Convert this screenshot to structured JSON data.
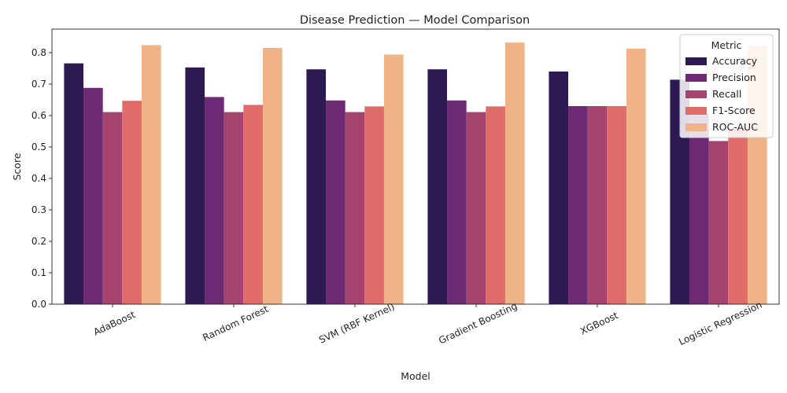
{
  "chart_data": {
    "type": "bar",
    "title": "Disease Prediction — Model Comparison",
    "xlabel": "Model",
    "ylabel": "Score",
    "ylim": [
      0,
      0.875
    ],
    "yticks": [
      0.0,
      0.1,
      0.2,
      0.3,
      0.4,
      0.5,
      0.6,
      0.7,
      0.8
    ],
    "grid": false,
    "legend": {
      "title": "Metric",
      "placement": "top-right"
    },
    "categories": [
      "AdaBoost",
      "Random Forest",
      "SVM (RBF Kernel)",
      "Gradient Boosting",
      "XGBoost",
      "Logistic Regression"
    ],
    "series": [
      {
        "name": "Accuracy",
        "color": "#2d1a52",
        "values": [
          0.766,
          0.753,
          0.747,
          0.747,
          0.74,
          0.714
        ]
      },
      {
        "name": "Precision",
        "color": "#6e2b75",
        "values": [
          0.688,
          0.659,
          0.648,
          0.648,
          0.63,
          0.606
        ]
      },
      {
        "name": "Recall",
        "color": "#a6436f",
        "values": [
          0.611,
          0.611,
          0.611,
          0.611,
          0.63,
          0.519
        ]
      },
      {
        "name": "F1-Score",
        "color": "#e06c6a",
        "values": [
          0.647,
          0.634,
          0.629,
          0.629,
          0.63,
          0.56
        ]
      },
      {
        "name": "ROC-AUC",
        "color": "#f0b387",
        "values": [
          0.824,
          0.815,
          0.794,
          0.832,
          0.813,
          0.823
        ]
      }
    ]
  }
}
